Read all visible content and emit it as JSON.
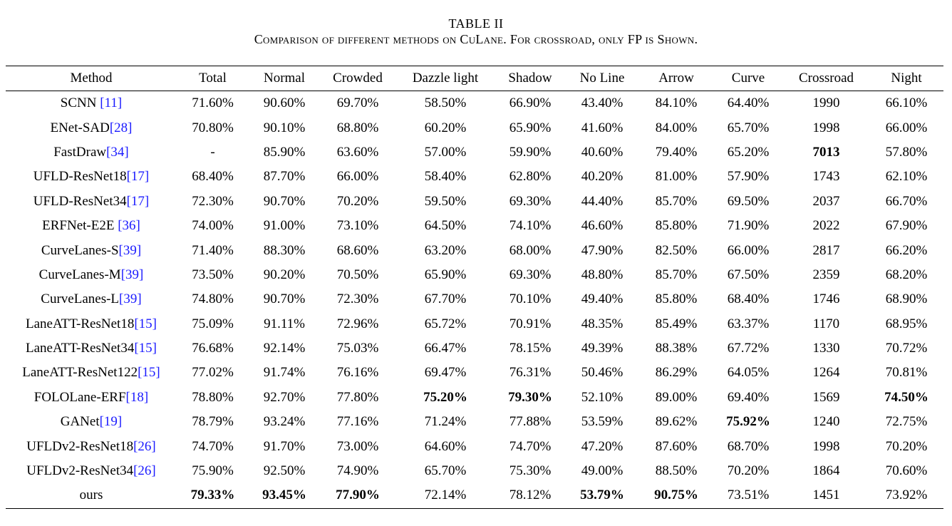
{
  "caption": {
    "title": "TABLE II",
    "subtitle": "Comparison of different methods on CuLane. For crossroad, only FP is Shown."
  },
  "table": {
    "headers": [
      "Method",
      "Total",
      "Normal",
      "Crowded",
      "Dazzle light",
      "Shadow",
      "No Line",
      "Arrow",
      "Curve",
      "Crossroad",
      "Night"
    ],
    "rows": [
      {
        "name": "SCNN ",
        "ref": "[11]",
        "cells": [
          "71.60%",
          "90.60%",
          "69.70%",
          "58.50%",
          "66.90%",
          "43.40%",
          "84.10%",
          "64.40%",
          "1990",
          "66.10%"
        ],
        "bold": []
      },
      {
        "name": "ENet-SAD",
        "ref": "[28]",
        "cells": [
          "70.80%",
          "90.10%",
          "68.80%",
          "60.20%",
          "65.90%",
          "41.60%",
          "84.00%",
          "65.70%",
          "1998",
          "66.00%"
        ],
        "bold": []
      },
      {
        "name": "FastDraw",
        "ref": "[34]",
        "cells": [
          "-",
          "85.90%",
          "63.60%",
          "57.00%",
          "59.90%",
          "40.60%",
          "79.40%",
          "65.20%",
          "7013",
          "57.80%"
        ],
        "bold": [
          8
        ]
      },
      {
        "name": "UFLD-ResNet18",
        "ref": "[17]",
        "cells": [
          "68.40%",
          "87.70%",
          "66.00%",
          "58.40%",
          "62.80%",
          "40.20%",
          "81.00%",
          "57.90%",
          "1743",
          "62.10%"
        ],
        "bold": []
      },
      {
        "name": "UFLD-ResNet34",
        "ref": "[17]",
        "cells": [
          "72.30%",
          "90.70%",
          "70.20%",
          "59.50%",
          "69.30%",
          "44.40%",
          "85.70%",
          "69.50%",
          "2037",
          "66.70%"
        ],
        "bold": []
      },
      {
        "name": "ERFNet-E2E ",
        "ref": "[36]",
        "cells": [
          "74.00%",
          "91.00%",
          "73.10%",
          "64.50%",
          "74.10%",
          "46.60%",
          "85.80%",
          "71.90%",
          "2022",
          "67.90%"
        ],
        "bold": []
      },
      {
        "name": "CurveLanes-S",
        "ref": "[39]",
        "cells": [
          "71.40%",
          "88.30%",
          "68.60%",
          "63.20%",
          "68.00%",
          "47.90%",
          "82.50%",
          "66.00%",
          "2817",
          "66.20%"
        ],
        "bold": []
      },
      {
        "name": "CurveLanes-M",
        "ref": "[39]",
        "cells": [
          "73.50%",
          "90.20%",
          "70.50%",
          "65.90%",
          "69.30%",
          "48.80%",
          "85.70%",
          "67.50%",
          "2359",
          "68.20%"
        ],
        "bold": []
      },
      {
        "name": "CurveLanes-L",
        "ref": "[39]",
        "cells": [
          "74.80%",
          "90.70%",
          "72.30%",
          "67.70%",
          "70.10%",
          "49.40%",
          "85.80%",
          "68.40%",
          "1746",
          "68.90%"
        ],
        "bold": []
      },
      {
        "name": "LaneATT-ResNet18",
        "ref": "[15]",
        "cells": [
          "75.09%",
          "91.11%",
          "72.96%",
          "65.72%",
          "70.91%",
          "48.35%",
          "85.49%",
          "63.37%",
          "1170",
          "68.95%"
        ],
        "bold": []
      },
      {
        "name": "LaneATT-ResNet34",
        "ref": "[15]",
        "cells": [
          "76.68%",
          "92.14%",
          "75.03%",
          "66.47%",
          "78.15%",
          "49.39%",
          "88.38%",
          "67.72%",
          "1330",
          "70.72%"
        ],
        "bold": []
      },
      {
        "name": "LaneATT-ResNet122",
        "ref": "[15]",
        "cells": [
          "77.02%",
          "91.74%",
          "76.16%",
          "69.47%",
          "76.31%",
          "50.46%",
          "86.29%",
          "64.05%",
          "1264",
          "70.81%"
        ],
        "bold": []
      },
      {
        "name": "FOLOLane-ERF",
        "ref": "[18]",
        "cells": [
          "78.80%",
          "92.70%",
          "77.80%",
          "75.20%",
          "79.30%",
          "52.10%",
          "89.00%",
          "69.40%",
          "1569",
          "74.50%"
        ],
        "bold": [
          3,
          4,
          9
        ]
      },
      {
        "name": "GANet",
        "ref": "[19]",
        "cells": [
          "78.79%",
          "93.24%",
          "77.16%",
          "71.24%",
          "77.88%",
          "53.59%",
          "89.62%",
          "75.92%",
          "1240",
          "72.75%"
        ],
        "bold": [
          7
        ]
      },
      {
        "name": "UFLDv2-ResNet18",
        "ref": "[26]",
        "cells": [
          "74.70%",
          "91.70%",
          "73.00%",
          "64.60%",
          "74.70%",
          "47.20%",
          "87.60%",
          "68.70%",
          "1998",
          "70.20%"
        ],
        "bold": []
      },
      {
        "name": "UFLDv2-ResNet34",
        "ref": "[26]",
        "cells": [
          "75.90%",
          "92.50%",
          "74.90%",
          "65.70%",
          "75.30%",
          "49.00%",
          "88.50%",
          "70.20%",
          "1864",
          "70.60%"
        ],
        "bold": []
      },
      {
        "name": "ours",
        "ref": "",
        "cells": [
          "79.33%",
          "93.45%",
          "77.90%",
          "72.14%",
          "78.12%",
          "53.79%",
          "90.75%",
          "73.51%",
          "1451",
          "73.92%"
        ],
        "bold": [
          0,
          1,
          2,
          5,
          6
        ]
      }
    ]
  }
}
